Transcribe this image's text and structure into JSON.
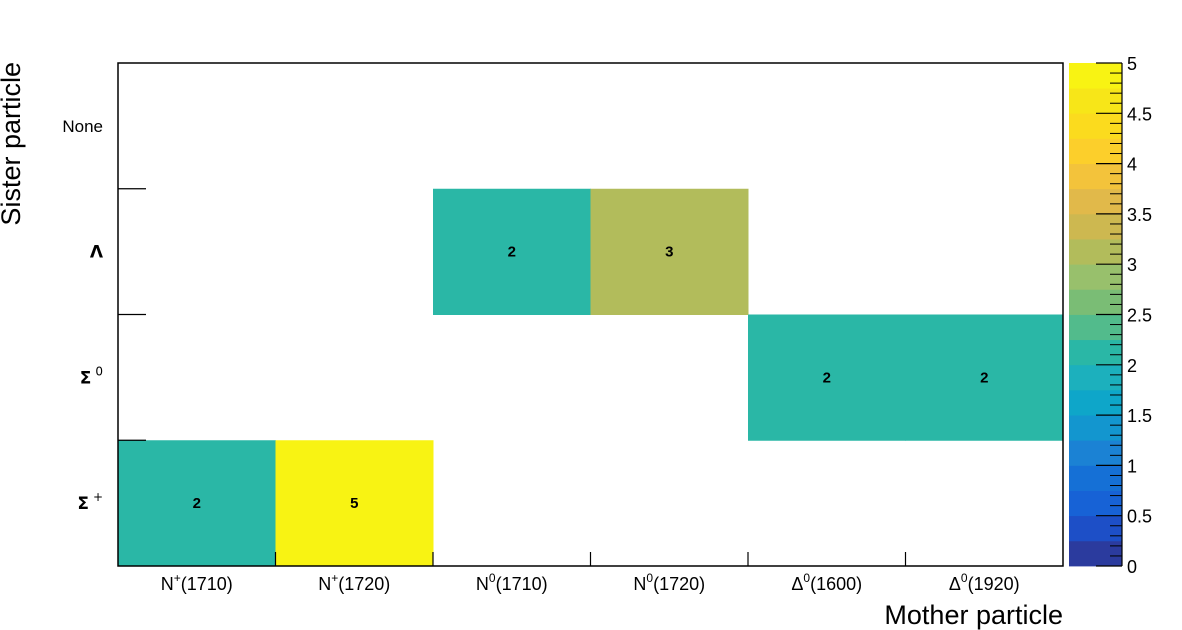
{
  "chart_data": {
    "type": "heatmap",
    "title": "",
    "xlabel": "Mother particle",
    "ylabel": "Sister particle",
    "x_categories": [
      {
        "base": "N",
        "sup": "+",
        "mass": "(1710)"
      },
      {
        "base": "N",
        "sup": "+",
        "mass": "(1720)"
      },
      {
        "base": "N",
        "sup": "0",
        "mass": "(1710)"
      },
      {
        "base": "N",
        "sup": "0",
        "mass": "(1720)"
      },
      {
        "base": "Δ",
        "sup": "0",
        "mass": "(1600)"
      },
      {
        "base": "Δ",
        "sup": "0",
        "mass": "(1920)"
      }
    ],
    "y_categories": [
      {
        "base": "Σ",
        "sup": "+"
      },
      {
        "base": "Σ",
        "sup": "0"
      },
      {
        "base": "Λ",
        "sup": ""
      },
      {
        "base": "None",
        "sup": ""
      }
    ],
    "cells": [
      {
        "x": 0,
        "y": 0,
        "value": 2
      },
      {
        "x": 1,
        "y": 0,
        "value": 5
      },
      {
        "x": 2,
        "y": 2,
        "value": 2
      },
      {
        "x": 3,
        "y": 2,
        "value": 3
      },
      {
        "x": 4,
        "y": 1,
        "value": 2
      },
      {
        "x": 5,
        "y": 1,
        "value": 2
      }
    ],
    "zlim": [
      0,
      5
    ],
    "colorbar": {
      "ticks": [
        "0",
        "0.5",
        "1",
        "1.5",
        "2",
        "2.5",
        "3",
        "3.5",
        "4",
        "4.5",
        "5"
      ],
      "palette": [
        "#2b3b9e",
        "#1d4fc7",
        "#1762d6",
        "#1570d6",
        "#1b82d4",
        "#1396cf",
        "#0ea6c9",
        "#1cb0bd",
        "#2ab7a6",
        "#52bb8c",
        "#7abd75",
        "#98c06c",
        "#b2bc5b",
        "#cdb850",
        "#e1b94a",
        "#f3c33b",
        "#fccf2b",
        "#fbdb1e",
        "#f7e618",
        "#f8f313"
      ]
    },
    "grid": false,
    "legend": "colorbar-right"
  }
}
